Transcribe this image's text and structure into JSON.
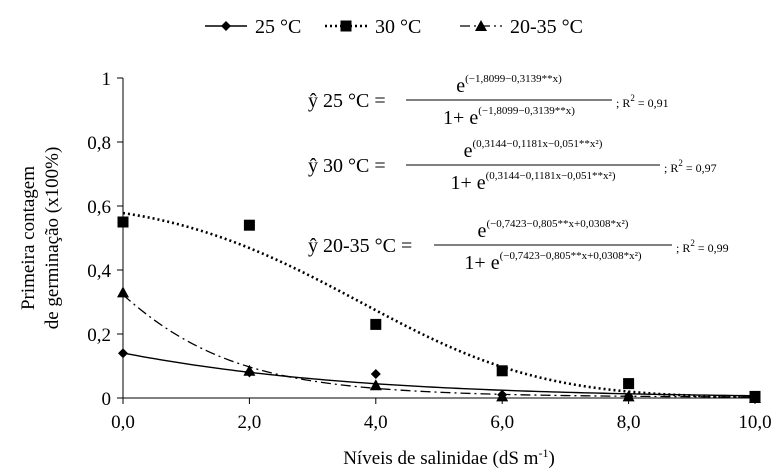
{
  "chart_data": {
    "type": "scatter",
    "xlabel": "Níveis de salinidae (dS m",
    "xlabel_sup": "-1",
    "xlabel_end": ")",
    "ylabel_line1": "Primeira contagem",
    "ylabel_line2": "de germinação (x100%)",
    "xlim": [
      0,
      10
    ],
    "ylim": [
      0,
      1
    ],
    "x_ticks": [
      0,
      2,
      4,
      6,
      8,
      10
    ],
    "x_tick_labels": [
      "0,0",
      "2,0",
      "4,0",
      "6,0",
      "8,0",
      "10,0"
    ],
    "y_ticks": [
      0,
      0.2,
      0.4,
      0.6,
      0.8,
      1
    ],
    "y_tick_labels": [
      "0",
      "0,2",
      "0,4",
      "0,6",
      "0,8",
      "1"
    ],
    "legend_position": "top",
    "series": [
      {
        "name": "25 °C",
        "marker": "diamond",
        "line_style": "solid",
        "color": "#000000",
        "x": [
          0,
          2,
          4,
          6,
          8,
          10
        ],
        "y": [
          0.14,
          0.08,
          0.075,
          0.01,
          0.005,
          0.0
        ],
        "fit": {
          "a": -1.8099,
          "b": -0.3139,
          "c": 0
        }
      },
      {
        "name": "30 °C",
        "marker": "square",
        "line_style": "dotted",
        "color": "#000000",
        "x": [
          0,
          2,
          4,
          6,
          8,
          10
        ],
        "y": [
          0.55,
          0.54,
          0.23,
          0.085,
          0.045,
          0.005
        ],
        "fit": {
          "a": 0.3144,
          "b": -0.1181,
          "c": -0.051
        }
      },
      {
        "name": "20-35 °C",
        "marker": "triangle",
        "line_style": "dashdot",
        "color": "#000000",
        "x": [
          0,
          2,
          4,
          6,
          8,
          10
        ],
        "y": [
          0.33,
          0.085,
          0.04,
          0.005,
          0.005,
          0.0
        ],
        "fit": {
          "a": -0.7423,
          "b": -0.805,
          "c": 0.0308
        }
      }
    ],
    "equations": [
      {
        "lhs": "ŷ 25 °C =",
        "num_exp": "(−1,8099−0,3139**x)",
        "den_exp": "(−1,8099−0,3139**x)",
        "r2_value": "= 0,91"
      },
      {
        "lhs": "ŷ 30 °C =",
        "num_exp": "(0,3144−0,1181x−0,051**x²)",
        "den_exp": "(0,3144−0,1181x−0,051**x²)",
        "r2_value": "= 0,97"
      },
      {
        "lhs": "ŷ 20-35 °C =",
        "num_exp": "(−0,7423−0,805**x+0,0308*x²)",
        "den_exp": "(−0,7423−0,805**x+0,0308*x²)",
        "r2_value": "= 0,99"
      }
    ],
    "eq_e": "e",
    "eq_den_prefix": "1+ e",
    "r2_label": "; R",
    "r2_sup": "2"
  }
}
